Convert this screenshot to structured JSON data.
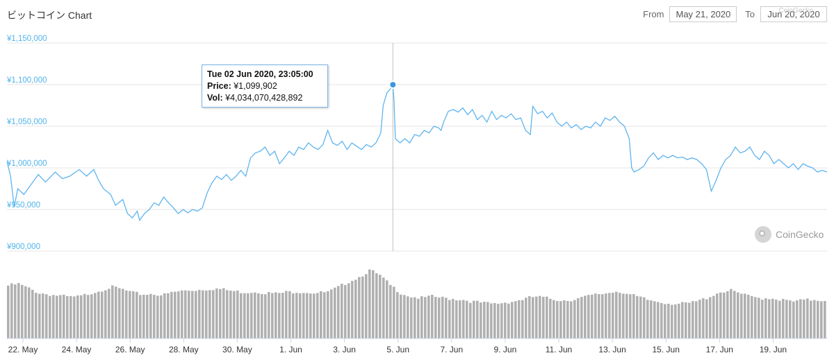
{
  "header": {
    "title": "ビットコイン Chart",
    "from_label": "From",
    "from_value": "May 21, 2020",
    "to_label": "To",
    "to_value": "Jun 20, 2020",
    "watermark": "CoinGecko"
  },
  "tooltip": {
    "date": "Tue 02 Jun 2020, 23:05:00",
    "price_label": "Price:",
    "price_value": "¥1,099,902",
    "vol_label": "Vol:",
    "vol_value": "¥4,034,070,428,892"
  },
  "logo": {
    "text": "CoinGecko"
  },
  "colors": {
    "line": "#5eb4ee",
    "axis_label": "#4fb3ea",
    "volume": "#b0b0b0",
    "grid": "#e6e6e6"
  },
  "chart_data": {
    "type": "line",
    "title": "ビットコイン Chart",
    "x_range": [
      "2020-05-21",
      "2020-06-20"
    ],
    "ylim": [
      900000,
      1150000
    ],
    "y_ticks": [
      "¥1,150,000",
      "¥1,100,000",
      "¥1,050,000",
      "¥1,000,000",
      "¥950,000",
      "¥900,000"
    ],
    "x_ticks": [
      "22. May",
      "24. May",
      "26. May",
      "28. May",
      "30. May",
      "1. Jun",
      "3. Jun",
      "5. Jun",
      "7. Jun",
      "9. Jun",
      "11. Jun",
      "13. Jun",
      "15. Jun",
      "17. Jun",
      "19. Jun"
    ],
    "grid": true,
    "highlight": {
      "day": 12.95,
      "price": 1099902
    },
    "price_series": [
      [
        0.0,
        1008000
      ],
      [
        0.15,
        990000
      ],
      [
        0.3,
        953000
      ],
      [
        0.45,
        975000
      ],
      [
        0.7,
        968000
      ],
      [
        1.0,
        980000
      ],
      [
        1.3,
        992000
      ],
      [
        1.6,
        983000
      ],
      [
        2.0,
        995000
      ],
      [
        2.3,
        987000
      ],
      [
        2.6,
        990000
      ],
      [
        3.0,
        998000
      ],
      [
        3.3,
        990000
      ],
      [
        3.6,
        998000
      ],
      [
        3.8,
        985000
      ],
      [
        4.0,
        975000
      ],
      [
        4.3,
        968000
      ],
      [
        4.5,
        955000
      ],
      [
        4.8,
        962000
      ],
      [
        5.0,
        945000
      ],
      [
        5.2,
        940000
      ],
      [
        5.4,
        948000
      ],
      [
        5.5,
        937000
      ],
      [
        5.7,
        945000
      ],
      [
        5.9,
        950000
      ],
      [
        6.1,
        958000
      ],
      [
        6.3,
        955000
      ],
      [
        6.5,
        965000
      ],
      [
        6.7,
        958000
      ],
      [
        6.9,
        952000
      ],
      [
        7.1,
        945000
      ],
      [
        7.3,
        950000
      ],
      [
        7.5,
        946000
      ],
      [
        7.7,
        950000
      ],
      [
        7.9,
        948000
      ],
      [
        8.1,
        952000
      ],
      [
        8.3,
        970000
      ],
      [
        8.5,
        982000
      ],
      [
        8.7,
        990000
      ],
      [
        8.9,
        986000
      ],
      [
        9.1,
        992000
      ],
      [
        9.3,
        985000
      ],
      [
        9.5,
        990000
      ],
      [
        9.7,
        997000
      ],
      [
        9.9,
        990000
      ],
      [
        10.1,
        1012000
      ],
      [
        10.3,
        1018000
      ],
      [
        10.5,
        1020000
      ],
      [
        10.7,
        1025000
      ],
      [
        10.9,
        1015000
      ],
      [
        11.1,
        1020000
      ],
      [
        11.3,
        1005000
      ],
      [
        11.5,
        1012000
      ],
      [
        11.7,
        1020000
      ],
      [
        11.9,
        1015000
      ],
      [
        12.1,
        1025000
      ],
      [
        12.3,
        1022000
      ],
      [
        12.5,
        1030000
      ],
      [
        12.7,
        1025000
      ],
      [
        12.9,
        1022000
      ],
      [
        13.1,
        1028000
      ],
      [
        13.3,
        1045000
      ],
      [
        13.5,
        1030000
      ],
      [
        13.7,
        1027000
      ],
      [
        13.9,
        1032000
      ],
      [
        14.1,
        1022000
      ],
      [
        14.3,
        1030000
      ],
      [
        14.5,
        1026000
      ],
      [
        14.7,
        1022000
      ],
      [
        14.9,
        1028000
      ],
      [
        15.1,
        1025000
      ],
      [
        15.3,
        1030000
      ],
      [
        15.5,
        1042000
      ],
      [
        15.6,
        1075000
      ],
      [
        15.75,
        1090000
      ],
      [
        15.9,
        1095000
      ],
      [
        16.0,
        1099902
      ],
      [
        16.05,
        1080000
      ],
      [
        16.1,
        1035000
      ],
      [
        16.3,
        1030000
      ],
      [
        16.5,
        1035000
      ],
      [
        16.7,
        1030000
      ],
      [
        16.9,
        1040000
      ],
      [
        17.1,
        1038000
      ],
      [
        17.3,
        1045000
      ],
      [
        17.5,
        1042000
      ],
      [
        17.7,
        1050000
      ],
      [
        17.9,
        1048000
      ],
      [
        18.0,
        1045000
      ],
      [
        18.1,
        1055000
      ],
      [
        18.3,
        1068000
      ],
      [
        18.5,
        1070000
      ],
      [
        18.7,
        1067000
      ],
      [
        18.9,
        1072000
      ],
      [
        19.1,
        1064000
      ],
      [
        19.3,
        1070000
      ],
      [
        19.5,
        1058000
      ],
      [
        19.7,
        1063000
      ],
      [
        19.9,
        1055000
      ],
      [
        20.1,
        1068000
      ],
      [
        20.3,
        1058000
      ],
      [
        20.5,
        1063000
      ],
      [
        20.7,
        1060000
      ],
      [
        20.9,
        1065000
      ],
      [
        21.1,
        1058000
      ],
      [
        21.3,
        1060000
      ],
      [
        21.5,
        1045000
      ],
      [
        21.7,
        1040000
      ],
      [
        21.8,
        1074000
      ],
      [
        22.0,
        1065000
      ],
      [
        22.2,
        1068000
      ],
      [
        22.4,
        1060000
      ],
      [
        22.6,
        1066000
      ],
      [
        22.8,
        1055000
      ],
      [
        23.0,
        1050000
      ],
      [
        23.2,
        1055000
      ],
      [
        23.4,
        1048000
      ],
      [
        23.6,
        1052000
      ],
      [
        23.8,
        1046000
      ],
      [
        24.0,
        1050000
      ],
      [
        24.2,
        1048000
      ],
      [
        24.4,
        1055000
      ],
      [
        24.6,
        1050000
      ],
      [
        24.8,
        1060000
      ],
      [
        25.0,
        1057000
      ],
      [
        25.2,
        1062000
      ],
      [
        25.4,
        1055000
      ],
      [
        25.6,
        1050000
      ],
      [
        25.8,
        1035000
      ],
      [
        25.9,
        1000000
      ],
      [
        26.0,
        995000
      ],
      [
        26.2,
        998000
      ],
      [
        26.4,
        1002000
      ],
      [
        26.6,
        1012000
      ],
      [
        26.8,
        1018000
      ],
      [
        27.0,
        1010000
      ],
      [
        27.2,
        1015000
      ],
      [
        27.4,
        1012000
      ],
      [
        27.6,
        1015000
      ],
      [
        27.8,
        1012000
      ],
      [
        28.0,
        1013000
      ],
      [
        28.2,
        1010000
      ],
      [
        28.4,
        1012000
      ],
      [
        28.6,
        1010000
      ],
      [
        28.8,
        1005000
      ],
      [
        29.0,
        998000
      ],
      [
        29.2,
        972000
      ],
      [
        29.4,
        985000
      ],
      [
        29.6,
        1000000
      ],
      [
        29.8,
        1010000
      ],
      [
        30.0,
        1015000
      ],
      [
        30.2,
        1025000
      ],
      [
        30.4,
        1018000
      ],
      [
        30.6,
        1020000
      ],
      [
        30.8,
        1025000
      ],
      [
        31.0,
        1015000
      ],
      [
        31.2,
        1010000
      ],
      [
        31.4,
        1020000
      ],
      [
        31.6,
        1015000
      ],
      [
        31.8,
        1005000
      ],
      [
        32.0,
        1010000
      ],
      [
        32.2,
        1005000
      ],
      [
        32.4,
        1000000
      ],
      [
        32.6,
        1005000
      ],
      [
        32.8,
        998000
      ],
      [
        33.0,
        1005000
      ],
      [
        33.2,
        1002000
      ],
      [
        33.4,
        1000000
      ],
      [
        33.6,
        995000
      ],
      [
        33.8,
        997000
      ],
      [
        34.0,
        995000
      ]
    ],
    "volume_series": [
      [
        0,
        0.72
      ],
      [
        1,
        0.74
      ],
      [
        2,
        0.68
      ],
      [
        3,
        0.62
      ],
      [
        4,
        0.6
      ],
      [
        5,
        0.58
      ],
      [
        6,
        0.56
      ],
      [
        7,
        0.57
      ],
      [
        8,
        0.62
      ],
      [
        9,
        0.66
      ],
      [
        10,
        0.7
      ],
      [
        11,
        0.67
      ],
      [
        12,
        0.62
      ],
      [
        13,
        0.6
      ],
      [
        14,
        0.61
      ],
      [
        15,
        0.59
      ],
      [
        16,
        0.63
      ],
      [
        17,
        0.65
      ],
      [
        18,
        0.66
      ],
      [
        19,
        0.67
      ],
      [
        20,
        0.68
      ],
      [
        21,
        0.66
      ],
      [
        22,
        0.64
      ],
      [
        23,
        0.63
      ],
      [
        24,
        0.64
      ],
      [
        25,
        0.62
      ],
      [
        26,
        0.61
      ],
      [
        27,
        0.63
      ],
      [
        28,
        0.64
      ],
      [
        29,
        0.63
      ],
      [
        30,
        0.62
      ],
      [
        31,
        0.63
      ],
      [
        32,
        0.7
      ],
      [
        33,
        0.78
      ],
      [
        34,
        0.84
      ],
      [
        35,
        0.93
      ],
      [
        36,
        0.85
      ],
      [
        37,
        0.72
      ],
      [
        38,
        0.62
      ],
      [
        39,
        0.57
      ],
      [
        40,
        0.55
      ],
      [
        41,
        0.57
      ],
      [
        42,
        0.55
      ],
      [
        43,
        0.54
      ],
      [
        44,
        0.53
      ],
      [
        45,
        0.5
      ],
      [
        46,
        0.48
      ],
      [
        47,
        0.47
      ],
      [
        48,
        0.49
      ],
      [
        49,
        0.51
      ],
      [
        50,
        0.54
      ],
      [
        51,
        0.57
      ],
      [
        52,
        0.55
      ],
      [
        53,
        0.53
      ],
      [
        54,
        0.52
      ],
      [
        55,
        0.54
      ],
      [
        56,
        0.57
      ],
      [
        57,
        0.6
      ],
      [
        58,
        0.62
      ],
      [
        59,
        0.65
      ],
      [
        60,
        0.6
      ],
      [
        61,
        0.56
      ],
      [
        62,
        0.52
      ],
      [
        63,
        0.5
      ],
      [
        64,
        0.48
      ],
      [
        65,
        0.47
      ],
      [
        66,
        0.48
      ],
      [
        67,
        0.52
      ],
      [
        68,
        0.58
      ],
      [
        69,
        0.64
      ],
      [
        70,
        0.65
      ],
      [
        71,
        0.6
      ],
      [
        72,
        0.56
      ],
      [
        73,
        0.55
      ],
      [
        74,
        0.55
      ],
      [
        75,
        0.52
      ],
      [
        76,
        0.5
      ],
      [
        77,
        0.52
      ],
      [
        78,
        0.53
      ],
      [
        79,
        0.52
      ]
    ]
  }
}
